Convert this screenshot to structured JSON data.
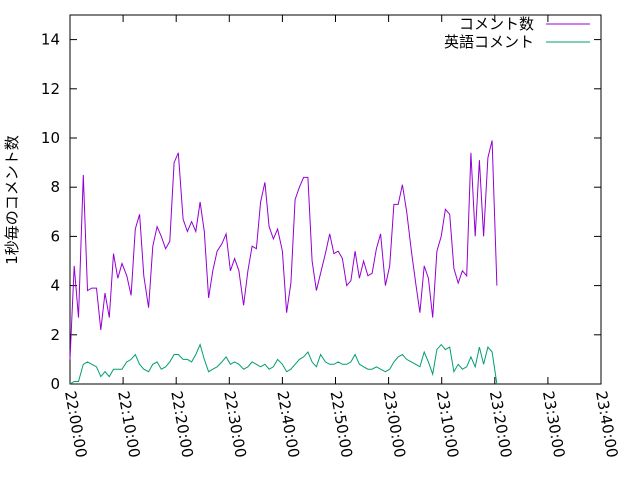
{
  "chart_data": {
    "type": "line",
    "title": "",
    "xlabel": "",
    "ylabel": "1秒毎のコメント数",
    "ylim": [
      0,
      15
    ],
    "y_ticks": [
      0,
      2,
      4,
      6,
      8,
      10,
      12,
      14
    ],
    "x_ticks": [
      "22:00:00",
      "22:10:00",
      "22:20:00",
      "22:30:00",
      "22:40:00",
      "22:50:00",
      "23:00:00",
      "23:10:00",
      "23:20:00",
      "23:30:00",
      "23:40:00"
    ],
    "xlim_minutes": [
      0,
      100
    ],
    "legend_position": "top-right",
    "grid": false,
    "series": [
      {
        "name": "コメント数",
        "color": "#9400d3",
        "points": [
          [
            0.0,
            1.0
          ],
          [
            0.8,
            4.8
          ],
          [
            1.6,
            2.7
          ],
          [
            2.5,
            8.5
          ],
          [
            3.3,
            3.8
          ],
          [
            4.1,
            3.9
          ],
          [
            5.0,
            3.9
          ],
          [
            5.8,
            2.2
          ],
          [
            6.6,
            3.7
          ],
          [
            7.4,
            2.7
          ],
          [
            8.2,
            5.3
          ],
          [
            9.0,
            4.3
          ],
          [
            9.8,
            4.9
          ],
          [
            10.7,
            4.4
          ],
          [
            11.5,
            3.6
          ],
          [
            12.3,
            6.3
          ],
          [
            13.1,
            6.9
          ],
          [
            13.9,
            4.4
          ],
          [
            14.8,
            3.1
          ],
          [
            15.6,
            5.6
          ],
          [
            16.4,
            6.4
          ],
          [
            17.2,
            6.0
          ],
          [
            18.0,
            5.5
          ],
          [
            18.8,
            5.8
          ],
          [
            19.6,
            9.0
          ],
          [
            20.4,
            9.4
          ],
          [
            21.3,
            6.7
          ],
          [
            22.1,
            6.2
          ],
          [
            22.9,
            6.6
          ],
          [
            23.7,
            6.2
          ],
          [
            24.5,
            7.4
          ],
          [
            25.3,
            6.2
          ],
          [
            26.1,
            3.5
          ],
          [
            26.9,
            4.6
          ],
          [
            27.7,
            5.4
          ],
          [
            28.6,
            5.7
          ],
          [
            29.4,
            6.1
          ],
          [
            30.2,
            4.6
          ],
          [
            31.0,
            5.1
          ],
          [
            31.8,
            4.6
          ],
          [
            32.7,
            3.2
          ],
          [
            33.5,
            4.6
          ],
          [
            34.3,
            5.6
          ],
          [
            35.1,
            5.5
          ],
          [
            35.9,
            7.4
          ],
          [
            36.7,
            8.2
          ],
          [
            37.5,
            6.4
          ],
          [
            38.3,
            5.9
          ],
          [
            39.1,
            6.3
          ],
          [
            40.0,
            5.4
          ],
          [
            40.8,
            2.9
          ],
          [
            41.6,
            4.1
          ],
          [
            42.4,
            7.5
          ],
          [
            43.2,
            8.0
          ],
          [
            44.0,
            8.4
          ],
          [
            44.8,
            8.4
          ],
          [
            45.6,
            5.0
          ],
          [
            46.4,
            3.8
          ],
          [
            47.2,
            4.5
          ],
          [
            48.1,
            5.3
          ],
          [
            48.9,
            6.1
          ],
          [
            49.7,
            5.3
          ],
          [
            50.5,
            5.4
          ],
          [
            51.3,
            5.1
          ],
          [
            52.1,
            4.0
          ],
          [
            52.9,
            4.2
          ],
          [
            53.7,
            5.4
          ],
          [
            54.5,
            4.3
          ],
          [
            55.3,
            5.0
          ],
          [
            56.1,
            4.4
          ],
          [
            56.9,
            4.5
          ],
          [
            57.7,
            5.5
          ],
          [
            58.5,
            6.1
          ],
          [
            59.4,
            4.0
          ],
          [
            60.2,
            4.8
          ],
          [
            61.0,
            7.3
          ],
          [
            61.8,
            7.3
          ],
          [
            62.6,
            8.1
          ],
          [
            63.4,
            7.0
          ],
          [
            64.3,
            5.4
          ],
          [
            65.1,
            4.1
          ],
          [
            65.9,
            2.9
          ],
          [
            66.7,
            4.8
          ],
          [
            67.5,
            4.3
          ],
          [
            68.3,
            2.7
          ],
          [
            69.1,
            5.4
          ],
          [
            69.9,
            6.0
          ],
          [
            70.7,
            7.1
          ],
          [
            71.5,
            6.9
          ],
          [
            72.3,
            4.7
          ],
          [
            73.1,
            4.1
          ],
          [
            73.9,
            4.6
          ],
          [
            74.7,
            4.4
          ],
          [
            75.5,
            9.4
          ],
          [
            76.3,
            6.0
          ],
          [
            77.1,
            9.1
          ],
          [
            77.9,
            6.0
          ],
          [
            78.7,
            9.2
          ],
          [
            79.5,
            9.9
          ],
          [
            80.4,
            4.0
          ]
        ]
      },
      {
        "name": "英語コメント",
        "color": "#009e73",
        "points": [
          [
            0.0,
            0.0
          ],
          [
            0.8,
            0.1
          ],
          [
            1.6,
            0.1
          ],
          [
            2.5,
            0.8
          ],
          [
            3.3,
            0.9
          ],
          [
            4.1,
            0.8
          ],
          [
            5.0,
            0.7
          ],
          [
            5.8,
            0.3
          ],
          [
            6.6,
            0.5
          ],
          [
            7.4,
            0.3
          ],
          [
            8.2,
            0.6
          ],
          [
            9.0,
            0.6
          ],
          [
            9.8,
            0.6
          ],
          [
            10.7,
            0.9
          ],
          [
            11.5,
            1.0
          ],
          [
            12.3,
            1.2
          ],
          [
            13.1,
            0.8
          ],
          [
            13.9,
            0.6
          ],
          [
            14.8,
            0.5
          ],
          [
            15.6,
            0.8
          ],
          [
            16.4,
            0.9
          ],
          [
            17.2,
            0.6
          ],
          [
            18.0,
            0.7
          ],
          [
            18.8,
            0.9
          ],
          [
            19.6,
            1.2
          ],
          [
            20.4,
            1.2
          ],
          [
            21.3,
            1.0
          ],
          [
            22.1,
            1.0
          ],
          [
            22.9,
            0.9
          ],
          [
            23.7,
            1.2
          ],
          [
            24.5,
            1.6
          ],
          [
            25.3,
            1.0
          ],
          [
            26.1,
            0.5
          ],
          [
            26.9,
            0.6
          ],
          [
            27.7,
            0.7
          ],
          [
            28.6,
            0.9
          ],
          [
            29.4,
            1.1
          ],
          [
            30.2,
            0.8
          ],
          [
            31.0,
            0.9
          ],
          [
            31.8,
            0.8
          ],
          [
            32.7,
            0.6
          ],
          [
            33.5,
            0.7
          ],
          [
            34.3,
            0.9
          ],
          [
            35.1,
            0.8
          ],
          [
            35.9,
            0.7
          ],
          [
            36.7,
            0.8
          ],
          [
            37.5,
            0.6
          ],
          [
            38.3,
            0.7
          ],
          [
            39.1,
            1.0
          ],
          [
            40.0,
            0.8
          ],
          [
            40.8,
            0.5
          ],
          [
            41.6,
            0.6
          ],
          [
            42.4,
            0.8
          ],
          [
            43.2,
            1.0
          ],
          [
            44.0,
            1.1
          ],
          [
            44.8,
            1.3
          ],
          [
            45.6,
            0.9
          ],
          [
            46.4,
            0.7
          ],
          [
            47.2,
            1.2
          ],
          [
            48.1,
            0.9
          ],
          [
            48.9,
            0.8
          ],
          [
            49.7,
            0.8
          ],
          [
            50.5,
            0.9
          ],
          [
            51.3,
            0.8
          ],
          [
            52.1,
            0.8
          ],
          [
            52.9,
            0.9
          ],
          [
            53.7,
            1.2
          ],
          [
            54.5,
            0.8
          ],
          [
            55.3,
            0.7
          ],
          [
            56.1,
            0.6
          ],
          [
            56.9,
            0.6
          ],
          [
            57.7,
            0.7
          ],
          [
            58.5,
            0.6
          ],
          [
            59.4,
            0.5
          ],
          [
            60.2,
            0.6
          ],
          [
            61.0,
            0.9
          ],
          [
            61.8,
            1.1
          ],
          [
            62.6,
            1.2
          ],
          [
            63.4,
            1.0
          ],
          [
            64.3,
            0.9
          ],
          [
            65.1,
            0.8
          ],
          [
            65.9,
            0.7
          ],
          [
            66.7,
            1.3
          ],
          [
            67.5,
            0.9
          ],
          [
            68.3,
            0.4
          ],
          [
            69.1,
            1.4
          ],
          [
            69.9,
            1.6
          ],
          [
            70.7,
            1.4
          ],
          [
            71.5,
            1.5
          ],
          [
            72.3,
            0.5
          ],
          [
            73.1,
            0.8
          ],
          [
            73.9,
            0.6
          ],
          [
            74.7,
            0.7
          ],
          [
            75.5,
            1.1
          ],
          [
            76.3,
            0.7
          ],
          [
            77.1,
            1.5
          ],
          [
            77.9,
            0.8
          ],
          [
            78.7,
            1.5
          ],
          [
            79.5,
            1.3
          ],
          [
            80.4,
            0.0
          ]
        ]
      }
    ]
  }
}
